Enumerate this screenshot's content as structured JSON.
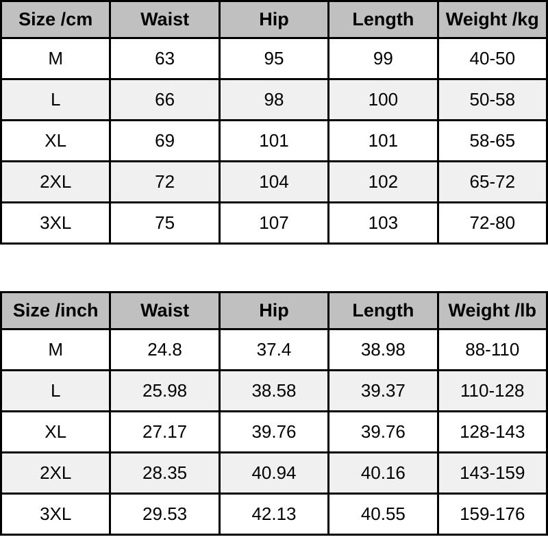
{
  "chart_data": [
    {
      "type": "table",
      "unit_system": "cm",
      "headers": [
        "Size /cm",
        "Waist",
        "Hip",
        "Length",
        "Weight /kg"
      ],
      "rows": [
        [
          "M",
          "63",
          "95",
          "99",
          "40-50"
        ],
        [
          "L",
          "66",
          "98",
          "100",
          "50-58"
        ],
        [
          "XL",
          "69",
          "101",
          "101",
          "58-65"
        ],
        [
          "2XL",
          "72",
          "104",
          "102",
          "65-72"
        ],
        [
          "3XL",
          "75",
          "107",
          "103",
          "72-80"
        ]
      ]
    },
    {
      "type": "table",
      "unit_system": "inch",
      "headers": [
        "Size /inch",
        "Waist",
        "Hip",
        "Length",
        "Weight /lb"
      ],
      "rows": [
        [
          "M",
          "24.8",
          "37.4",
          "38.98",
          "88-110"
        ],
        [
          "L",
          "25.98",
          "38.58",
          "39.37",
          "110-128"
        ],
        [
          "XL",
          "27.17",
          "39.76",
          "39.76",
          "128-143"
        ],
        [
          "2XL",
          "28.35",
          "40.94",
          "40.16",
          "143-159"
        ],
        [
          "3XL",
          "29.53",
          "42.13",
          "40.55",
          "159-176"
        ]
      ]
    }
  ],
  "colors": {
    "header_bg": "#c0c0c0",
    "row_bg": "#ffffff",
    "row_alt_bg": "#f0f0f0",
    "border": "#000000",
    "text": "#000000"
  }
}
